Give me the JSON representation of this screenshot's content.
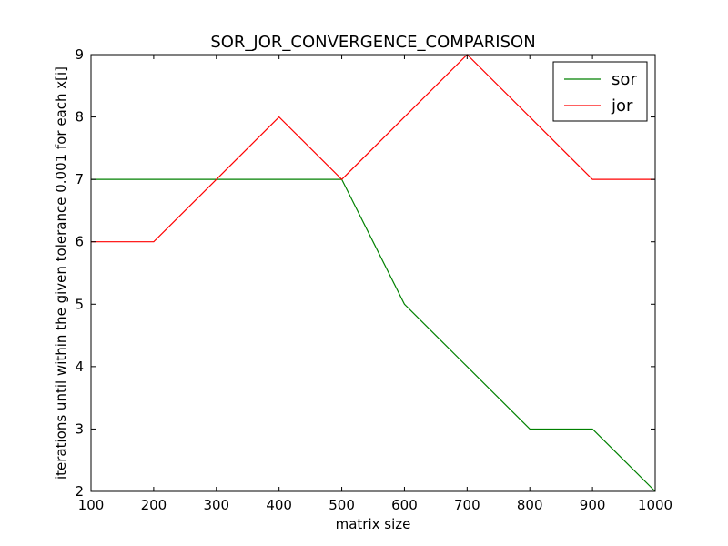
{
  "chart_data": {
    "type": "line",
    "title": "SOR_JOR_CONVERGENCE_COMPARISON",
    "xlabel": "matrix size",
    "ylabel": "iterations until within the given tolerance 0.001 for each x[i]",
    "x": [
      100,
      200,
      300,
      400,
      500,
      600,
      700,
      800,
      900,
      1000
    ],
    "xlim": [
      100,
      1000
    ],
    "ylim": [
      2,
      9
    ],
    "xticks": [
      "100",
      "200",
      "300",
      "400",
      "500",
      "600",
      "700",
      "800",
      "900",
      "1000"
    ],
    "yticks": [
      "2",
      "3",
      "4",
      "5",
      "6",
      "7",
      "8",
      "9"
    ],
    "grid": false,
    "legend_position": "top-right",
    "series": [
      {
        "name": "sor",
        "color": "#008000",
        "values": [
          7,
          7,
          7,
          7,
          7,
          5,
          4,
          3,
          3,
          2
        ]
      },
      {
        "name": "jor",
        "color": "#ff0000",
        "values": [
          6,
          6,
          7,
          8,
          7,
          8,
          9,
          8,
          7,
          7
        ]
      }
    ]
  }
}
